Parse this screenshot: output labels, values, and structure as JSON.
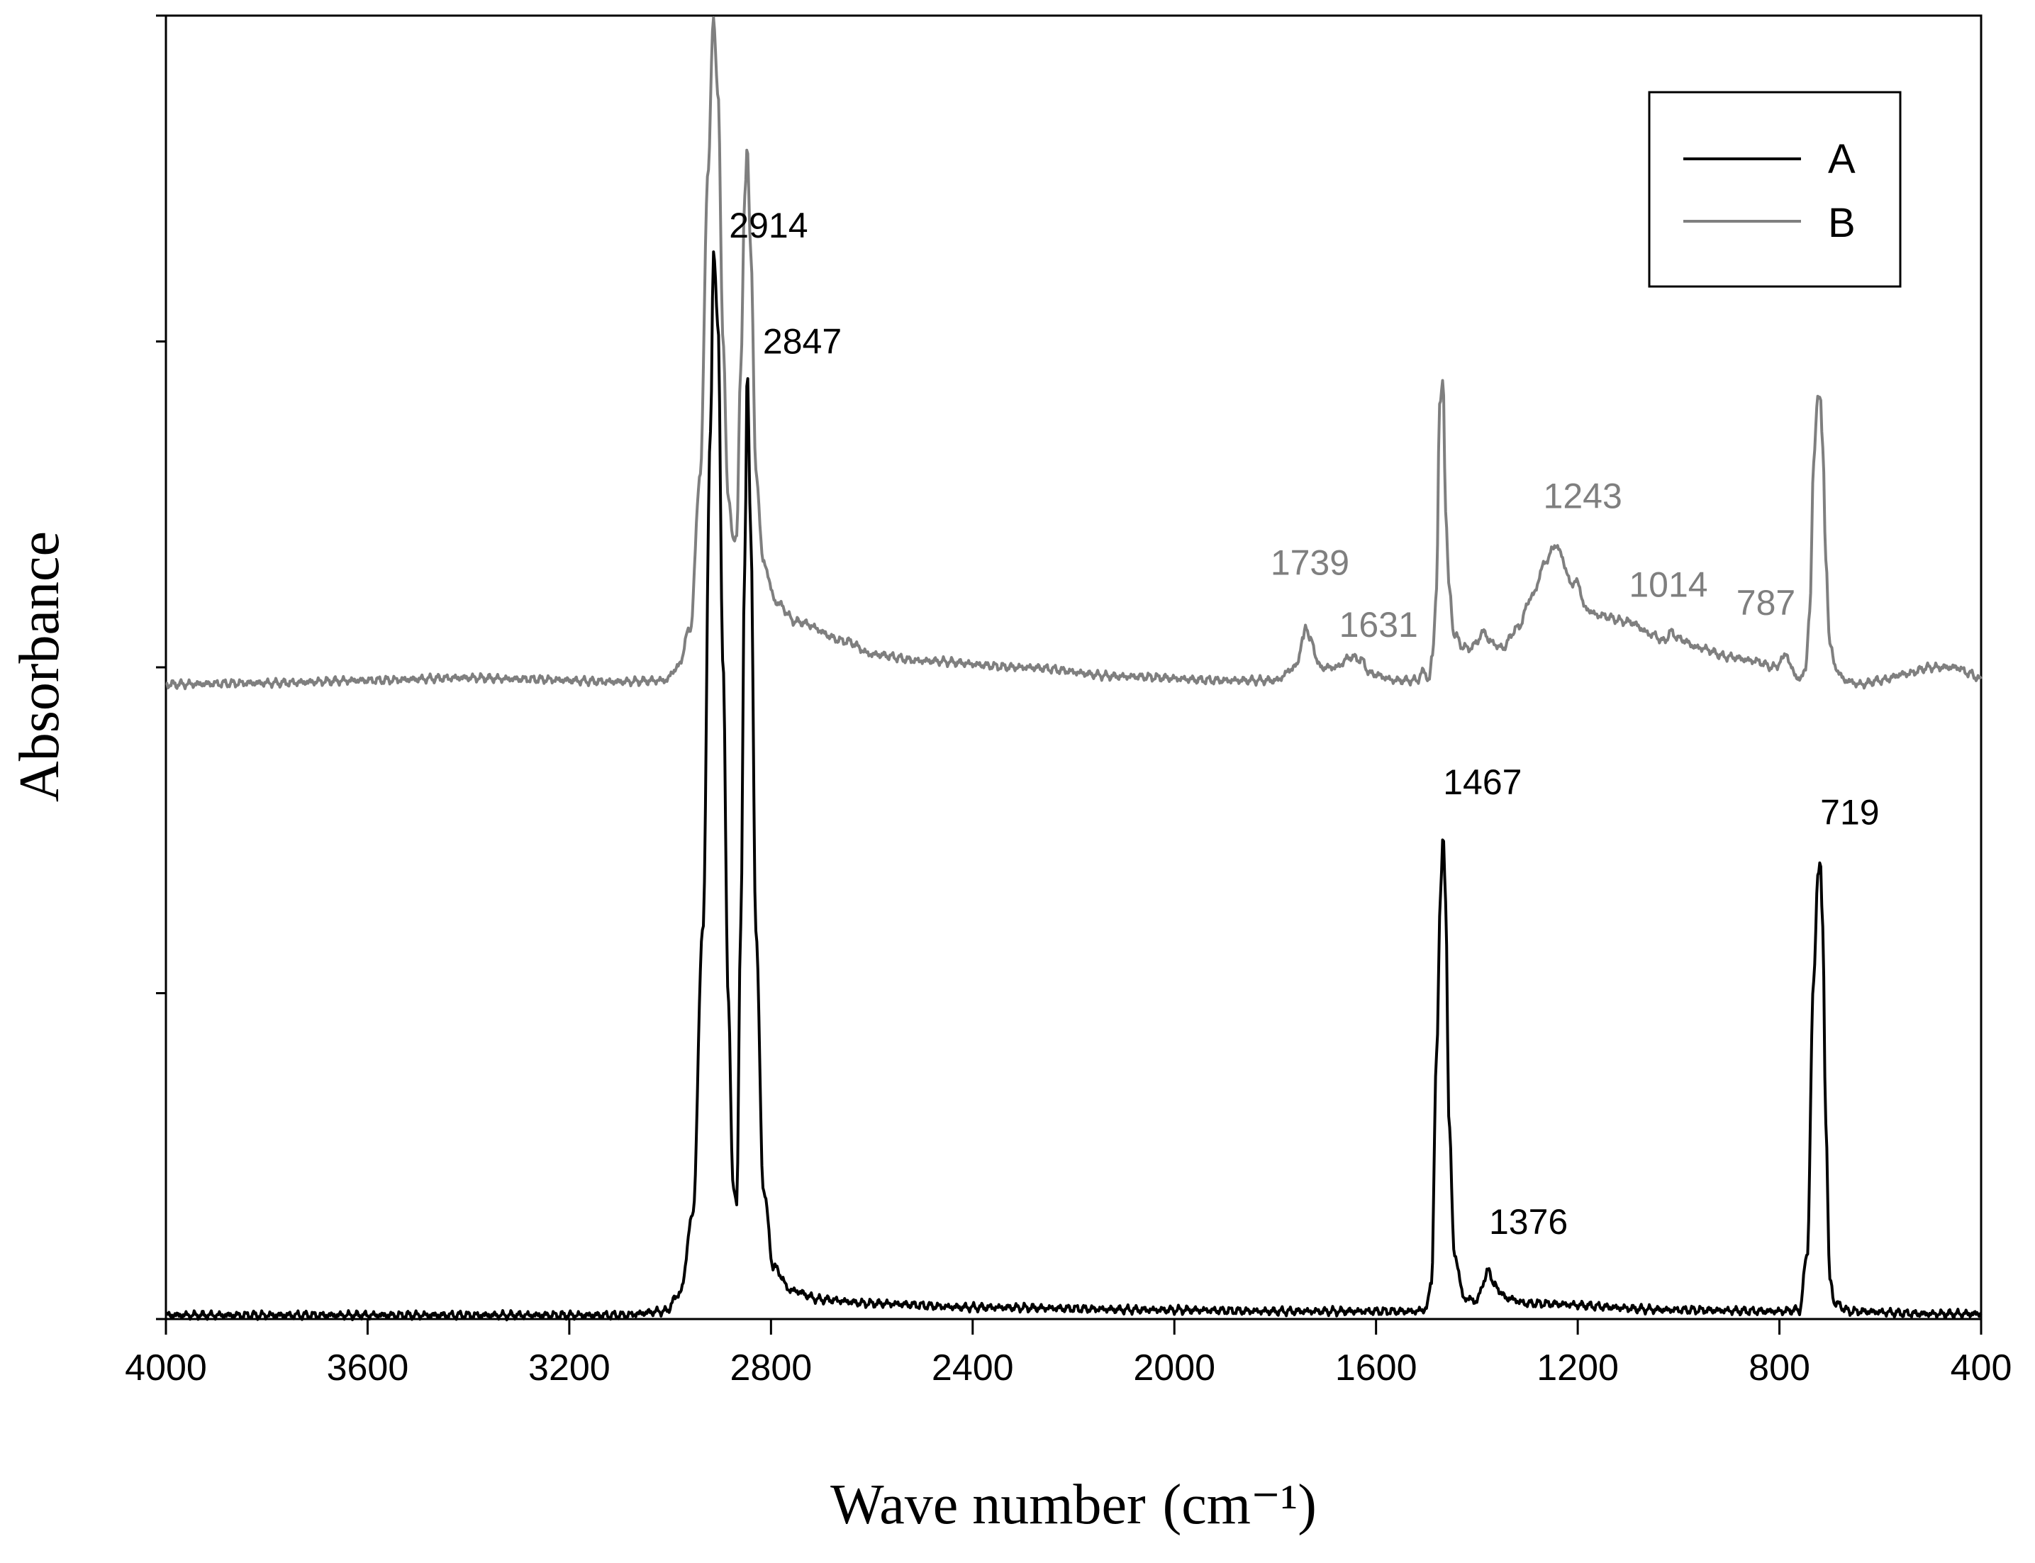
{
  "chart_data": {
    "type": "line",
    "xlabel": "Wave number",
    "xlabel_unit": "(cm⁻¹)",
    "ylabel": "Absorbance",
    "xlim": [
      4000,
      400
    ],
    "x_reversed": true,
    "ylim": [
      0,
      1
    ],
    "y_ticks_labeled": false,
    "x_ticks": [
      4000,
      3600,
      3200,
      2800,
      2400,
      2000,
      1600,
      1200,
      800,
      400
    ],
    "grid": false,
    "legend": {
      "placement": "top-right",
      "entries": [
        "A",
        "B"
      ]
    },
    "colors": {
      "A": "#000000",
      "B": "#7f7f7f"
    },
    "series": [
      {
        "name": "A",
        "baseline": 0.003,
        "points": [
          [
            4000,
            0.003
          ],
          [
            3500,
            0.003
          ],
          [
            3100,
            0.003
          ],
          [
            3010,
            0.006
          ],
          [
            2980,
            0.02
          ],
          [
            2955,
            0.08
          ],
          [
            2935,
            0.3
          ],
          [
            2920,
            0.68
          ],
          [
            2914,
            0.82
          ],
          [
            2905,
            0.76
          ],
          [
            2895,
            0.5
          ],
          [
            2885,
            0.25
          ],
          [
            2875,
            0.1
          ],
          [
            2868,
            0.09
          ],
          [
            2860,
            0.3
          ],
          [
            2852,
            0.58
          ],
          [
            2847,
            0.73
          ],
          [
            2840,
            0.6
          ],
          [
            2830,
            0.3
          ],
          [
            2815,
            0.1
          ],
          [
            2795,
            0.04
          ],
          [
            2760,
            0.022
          ],
          [
            2700,
            0.015
          ],
          [
            2600,
            0.012
          ],
          [
            2400,
            0.009
          ],
          [
            2000,
            0.007
          ],
          [
            1800,
            0.006
          ],
          [
            1600,
            0.006
          ],
          [
            1520,
            0.006
          ],
          [
            1500,
            0.008
          ],
          [
            1490,
            0.03
          ],
          [
            1480,
            0.2
          ],
          [
            1472,
            0.33
          ],
          [
            1467,
            0.37
          ],
          [
            1462,
            0.32
          ],
          [
            1455,
            0.15
          ],
          [
            1445,
            0.05
          ],
          [
            1425,
            0.016
          ],
          [
            1400,
            0.014
          ],
          [
            1385,
            0.03
          ],
          [
            1376,
            0.038
          ],
          [
            1365,
            0.025
          ],
          [
            1340,
            0.016
          ],
          [
            1300,
            0.012
          ],
          [
            1000,
            0.007
          ],
          [
            800,
            0.006
          ],
          [
            760,
            0.007
          ],
          [
            745,
            0.05
          ],
          [
            732,
            0.26
          ],
          [
            724,
            0.34
          ],
          [
            719,
            0.35
          ],
          [
            714,
            0.3
          ],
          [
            708,
            0.15
          ],
          [
            700,
            0.03
          ],
          [
            690,
            0.012
          ],
          [
            660,
            0.006
          ],
          [
            500,
            0.004
          ],
          [
            400,
            0.004
          ]
        ],
        "annotations": [
          {
            "label": "2914",
            "x": 2914,
            "y": 0.82
          },
          {
            "label": "2847",
            "x": 2847,
            "y": 0.73
          },
          {
            "label": "1467",
            "x": 1467,
            "y": 0.37
          },
          {
            "label": "1376",
            "x": 1376,
            "y": 0.038
          },
          {
            "label": "719",
            "x": 719,
            "y": 0.35
          }
        ]
      },
      {
        "name": "B",
        "baseline": 0.487,
        "points": [
          [
            4000,
            0.487
          ],
          [
            3800,
            0.488
          ],
          [
            3600,
            0.49
          ],
          [
            3400,
            0.492
          ],
          [
            3300,
            0.491
          ],
          [
            3100,
            0.489
          ],
          [
            3010,
            0.49
          ],
          [
            2985,
            0.5
          ],
          [
            2960,
            0.53
          ],
          [
            2940,
            0.65
          ],
          [
            2925,
            0.88
          ],
          [
            2914,
            0.997
          ],
          [
            2905,
            0.94
          ],
          [
            2895,
            0.75
          ],
          [
            2885,
            0.63
          ],
          [
            2875,
            0.6
          ],
          [
            2868,
            0.6
          ],
          [
            2860,
            0.73
          ],
          [
            2852,
            0.86
          ],
          [
            2847,
            0.897
          ],
          [
            2840,
            0.82
          ],
          [
            2830,
            0.65
          ],
          [
            2815,
            0.58
          ],
          [
            2790,
            0.55
          ],
          [
            2750,
            0.535
          ],
          [
            2650,
            0.52
          ],
          [
            2600,
            0.51
          ],
          [
            2500,
            0.505
          ],
          [
            2300,
            0.5
          ],
          [
            2100,
            0.493
          ],
          [
            1900,
            0.49
          ],
          [
            1800,
            0.49
          ],
          [
            1760,
            0.5
          ],
          [
            1745,
            0.52
          ],
          [
            1739,
            0.533
          ],
          [
            1730,
            0.52
          ],
          [
            1710,
            0.5
          ],
          [
            1680,
            0.5
          ],
          [
            1650,
            0.508
          ],
          [
            1631,
            0.506
          ],
          [
            1610,
            0.495
          ],
          [
            1560,
            0.49
          ],
          [
            1520,
            0.49
          ],
          [
            1505,
            0.497
          ],
          [
            1495,
            0.49
          ],
          [
            1488,
            0.51
          ],
          [
            1480,
            0.56
          ],
          [
            1474,
            0.7
          ],
          [
            1467,
            0.72
          ],
          [
            1462,
            0.62
          ],
          [
            1455,
            0.56
          ],
          [
            1445,
            0.525
          ],
          [
            1425,
            0.515
          ],
          [
            1410,
            0.515
          ],
          [
            1400,
            0.52
          ],
          [
            1385,
            0.528
          ],
          [
            1376,
            0.52
          ],
          [
            1350,
            0.515
          ],
          [
            1320,
            0.53
          ],
          [
            1290,
            0.555
          ],
          [
            1265,
            0.58
          ],
          [
            1250,
            0.59
          ],
          [
            1243,
            0.595
          ],
          [
            1232,
            0.585
          ],
          [
            1215,
            0.565
          ],
          [
            1200,
            0.565
          ],
          [
            1185,
            0.545
          ],
          [
            1160,
            0.54
          ],
          [
            1100,
            0.535
          ],
          [
            1050,
            0.525
          ],
          [
            1030,
            0.52
          ],
          [
            1014,
            0.527
          ],
          [
            1000,
            0.522
          ],
          [
            960,
            0.515
          ],
          [
            900,
            0.508
          ],
          [
            850,
            0.505
          ],
          [
            810,
            0.5
          ],
          [
            795,
            0.505
          ],
          [
            787,
            0.512
          ],
          [
            778,
            0.5
          ],
          [
            760,
            0.49
          ],
          [
            748,
            0.5
          ],
          [
            740,
            0.54
          ],
          [
            732,
            0.66
          ],
          [
            724,
            0.705
          ],
          [
            719,
            0.71
          ],
          [
            714,
            0.67
          ],
          [
            708,
            0.58
          ],
          [
            700,
            0.52
          ],
          [
            690,
            0.5
          ],
          [
            670,
            0.49
          ],
          [
            640,
            0.487
          ],
          [
            600,
            0.49
          ],
          [
            550,
            0.495
          ],
          [
            500,
            0.5
          ],
          [
            450,
            0.5
          ],
          [
            420,
            0.495
          ],
          [
            400,
            0.49
          ]
        ],
        "annotations": [
          {
            "label": "1739",
            "x": 1739,
            "y": 0.533
          },
          {
            "label": "1631",
            "x": 1631,
            "y": 0.506
          },
          {
            "label": "1243",
            "x": 1243,
            "y": 0.595
          },
          {
            "label": "1014",
            "x": 1014,
            "y": 0.527
          },
          {
            "label": "787",
            "x": 787,
            "y": 0.512
          }
        ]
      }
    ]
  }
}
